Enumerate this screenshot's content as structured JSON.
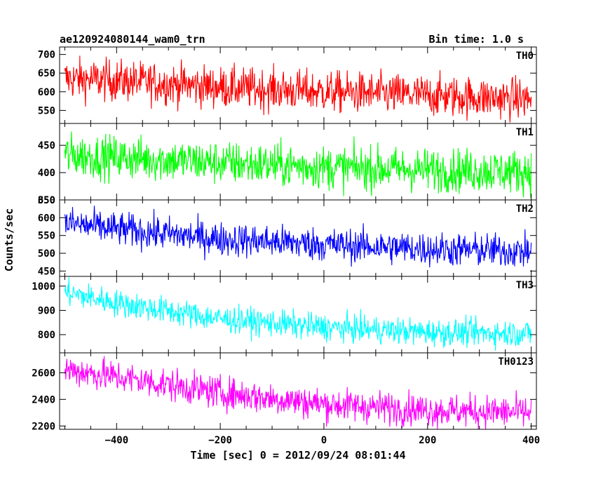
{
  "header": {
    "title": "ae120924080144_wam0_trn",
    "bin_time": "Bin time: 1.0 s"
  },
  "chart_data": {
    "type": "line",
    "xlabel": "Time [sec] 0 = 2012/09/24 08:01:44",
    "ylabel": "Counts/sec",
    "xlim": [
      -510,
      410
    ],
    "x_ticks": [
      -400,
      -200,
      0,
      200,
      400
    ],
    "x_range": [
      -500,
      400
    ],
    "bin_time_s": 1.0,
    "panels": [
      {
        "name": "TH0",
        "color": "#ff0000",
        "ylim": [
          515,
          720
        ],
        "y_ticks": [
          550,
          600,
          650,
          700
        ],
        "trend": [
          [
            -500,
            635
          ],
          [
            -400,
            630
          ],
          [
            -200,
            612
          ],
          [
            0,
            600
          ],
          [
            200,
            590
          ],
          [
            400,
            580
          ]
        ],
        "noise": 28
      },
      {
        "name": "TH1",
        "color": "#00ff00",
        "ylim": [
          350,
          490
        ],
        "y_ticks": [
          350,
          400,
          450
        ],
        "trend": [
          [
            -500,
            432
          ],
          [
            -400,
            428
          ],
          [
            -200,
            418
          ],
          [
            0,
            410
          ],
          [
            200,
            405
          ],
          [
            400,
            402
          ]
        ],
        "noise": 20
      },
      {
        "name": "TH2",
        "color": "#0000ff",
        "ylim": [
          435,
          650
        ],
        "y_ticks": [
          450,
          500,
          550,
          600,
          650
        ],
        "trend": [
          [
            -500,
            585
          ],
          [
            -400,
            568
          ],
          [
            -200,
            540
          ],
          [
            0,
            525
          ],
          [
            200,
            512
          ],
          [
            400,
            505
          ]
        ],
        "noise": 24
      },
      {
        "name": "TH3",
        "color": "#00ffff",
        "ylim": [
          725,
          1040
        ],
        "y_ticks": [
          800,
          900,
          1000
        ],
        "trend": [
          [
            -500,
            975
          ],
          [
            -400,
            930
          ],
          [
            -200,
            865
          ],
          [
            0,
            830
          ],
          [
            200,
            810
          ],
          [
            400,
            805
          ]
        ],
        "noise": 28
      },
      {
        "name": "TH0123",
        "color": "#ff00ff",
        "ylim": [
          2175,
          2750
        ],
        "y_ticks": [
          2200,
          2400,
          2600
        ],
        "trend": [
          [
            -500,
            2625
          ],
          [
            -400,
            2570
          ],
          [
            -200,
            2450
          ],
          [
            0,
            2365
          ],
          [
            200,
            2320
          ],
          [
            400,
            2300
          ]
        ],
        "noise": 62
      }
    ]
  }
}
